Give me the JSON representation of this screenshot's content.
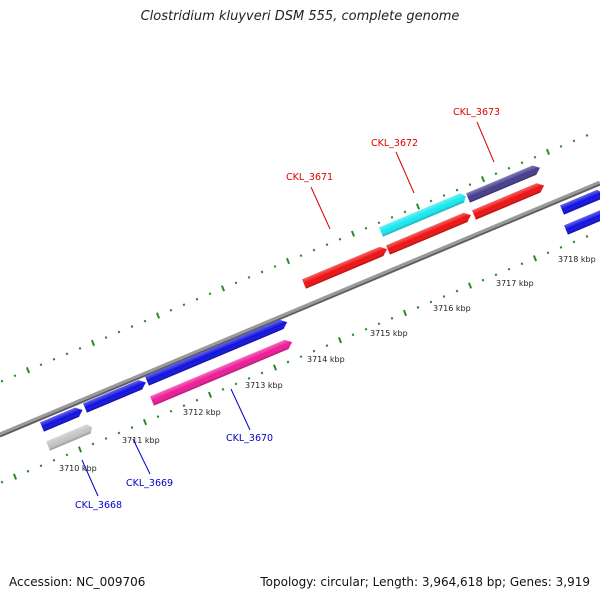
{
  "title": "Clostridium kluyveri DSM 555, complete genome",
  "footer": {
    "accession": "Accession: NC_009706",
    "summary": "Topology: circular; Length: 3,964,618 bp; Genes: 3,919"
  },
  "colors": {
    "backbone": "#808080",
    "tick": "#2a8a2a",
    "blue_gene": "#1010e0",
    "red_gene": "#ee1010",
    "cyan_gene": "#18e8f0",
    "navy_gene": "#443c8c",
    "magenta_gene": "#ee1a98",
    "gray_gene": "#c4c4c4",
    "label_red": "#dd0000",
    "label_blue": "#0000cc"
  },
  "scale_labels": [
    "3710 kbp",
    "3711 kbp",
    "3712 kbp",
    "3713 kbp",
    "3714 kbp",
    "3715 kbp",
    "3716 kbp",
    "3717 kbp",
    "3718 kbp"
  ],
  "gene_labels": [
    "CKL_3668",
    "CKL_3669",
    "CKL_3670",
    "CKL_3671",
    "CKL_3672",
    "CKL_3673"
  ]
}
